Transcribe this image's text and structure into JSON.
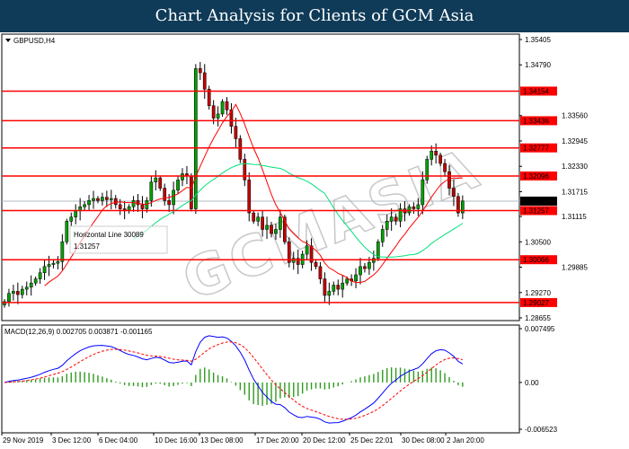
{
  "header": {
    "title": "Chart Analysis for Clients of GCM Asia"
  },
  "chart_data": {
    "type": "candlestick",
    "symbol_label": "GBPUSD,H4",
    "watermark": "GCMASIA",
    "colors": {
      "bull": "#00a000",
      "bear": "#c00000",
      "hline": "#ff0000",
      "ma_fast": "#ff0000",
      "ma_slow": "#00e07a",
      "macd": "#0000ff",
      "signal": "#ff0000",
      "hist": "#2f9a1f",
      "price_tag": "#000000"
    },
    "price_axis": {
      "ticks": [
        "1.35405",
        "1.34790",
        "1.33560",
        "1.32945",
        "1.32330",
        "1.31715",
        "1.31115",
        "1.30500",
        "1.29885",
        "1.29270",
        "1.28655"
      ],
      "range": [
        1.28655,
        1.35405
      ]
    },
    "current_price": "1.31487",
    "horizontal_lines": [
      "1.34154",
      "1.33436",
      "1.32777",
      "1.32096",
      "1.31257",
      "1.30066",
      "1.29027"
    ],
    "tooltip": {
      "name": "Horizontal Line 30089",
      "value": "1.31257"
    },
    "x_labels": [
      "29 Nov 2019",
      "3 Dec 12:00",
      "6 Dec 04:00",
      "10 Dec 16:00",
      "13 Dec 08:00",
      "17 Dec 20:00",
      "20 Dec 12:00",
      "25 Dec 22:01",
      "30 Dec 08:00",
      "2 Jan 20:00"
    ],
    "closes": [
      1.2905,
      1.2925,
      1.293,
      1.2922,
      1.2935,
      1.294,
      1.295,
      1.296,
      1.2975,
      1.299,
      1.2995,
      1.2998,
      1.3002,
      1.305,
      1.31,
      1.311,
      1.3125,
      1.3135,
      1.314,
      1.315,
      1.3155,
      1.315,
      1.3158,
      1.3152,
      1.3155,
      1.314,
      1.313,
      1.3125,
      1.3135,
      1.315,
      1.314,
      1.313,
      1.315,
      1.3195,
      1.3205,
      1.318,
      1.315,
      1.314,
      1.3175,
      1.32,
      1.3215,
      1.321,
      1.313,
      1.347,
      1.346,
      1.342,
      1.338,
      1.335,
      1.336,
      1.339,
      1.337,
      1.333,
      1.33,
      1.325,
      1.32,
      1.312,
      1.31,
      1.311,
      1.308,
      1.309,
      1.307,
      1.308,
      1.311,
      1.305,
      1.3,
      1.301,
      1.2995,
      1.302,
      1.304,
      1.3,
      1.299,
      1.296,
      1.292,
      1.293,
      1.2945,
      1.2935,
      1.295,
      1.296,
      1.2955,
      1.297,
      1.299,
      1.2985,
      1.3,
      1.301,
      1.305,
      1.308,
      1.31,
      1.311,
      1.31,
      1.313,
      1.312,
      1.3135,
      1.313,
      1.314,
      1.32,
      1.325,
      1.327,
      1.326,
      1.324,
      1.322,
      1.318,
      1.316,
      1.312,
      1.3149
    ],
    "macd": {
      "label": "MACD(12,26,9) 0.002705 0.003871 -0.001165",
      "ticks": [
        "0.007495",
        "0.00",
        "-0.006523"
      ],
      "range": [
        -0.006523,
        0.007495
      ]
    }
  }
}
